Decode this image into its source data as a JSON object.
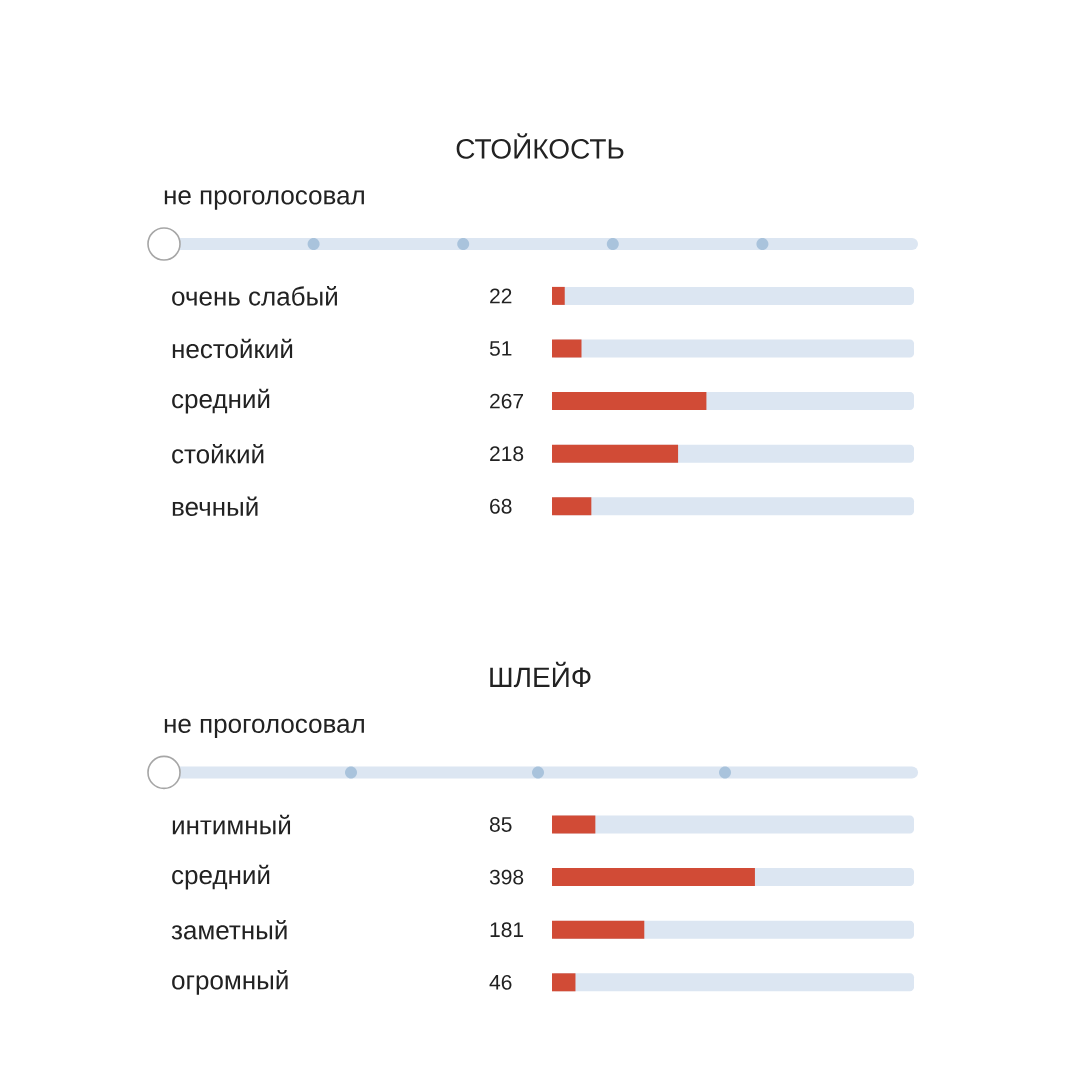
{
  "chart_data": [
    {
      "type": "bar",
      "orientation": "horizontal",
      "title": "СТОЙКОСТЬ",
      "subtitle": "не проголосовал",
      "categories": [
        "очень слабый",
        "нестойкий",
        "средний",
        "стойкий",
        "вечный"
      ],
      "values": [
        22,
        51,
        267,
        218,
        68
      ],
      "color": "#d14b36",
      "xlim": [
        0,
        626
      ],
      "data_labels": true,
      "tick_labels": "y"
    },
    {
      "type": "bar",
      "orientation": "horizontal",
      "title": "ШЛЕЙФ",
      "subtitle": "не проголосовал",
      "categories": [
        "интимный",
        "средний",
        "заметный",
        "огромный"
      ],
      "values": [
        85,
        398,
        181,
        46
      ],
      "color": "#d14b36",
      "xlim": [
        0,
        710
      ],
      "data_labels": true,
      "tick_labels": "y"
    }
  ]
}
